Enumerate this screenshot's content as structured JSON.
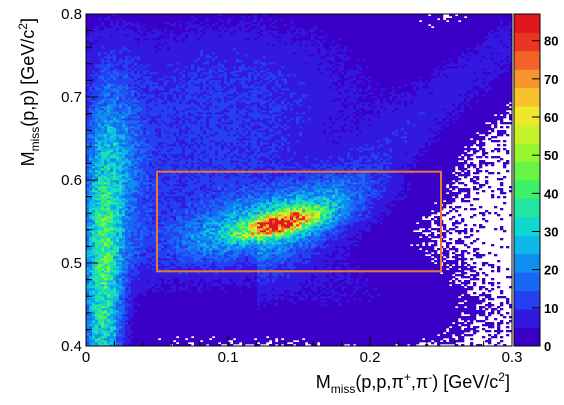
{
  "chart_data": {
    "type": "heatmap",
    "title": "",
    "xlabel_parts": {
      "main": "M",
      "sub": "miss",
      "rest": "(p,p,",
      "pi": "π",
      "sup1": "+",
      "comma": ",",
      "pi2": "π",
      "sup2": "-",
      "tail": ") [GeV/c",
      "sup3": "2",
      "close": "]"
    },
    "ylabel_parts": {
      "main": "M",
      "sub": "miss",
      "rest": "(p,p) [GeV/c",
      "sup": "2",
      "close": "]"
    },
    "xlim": [
      0,
      0.3
    ],
    "ylim": [
      0.4,
      0.8
    ],
    "x_ticks": [
      {
        "value": 0,
        "label": "0"
      },
      {
        "value": 0.1,
        "label": "0.1"
      },
      {
        "value": 0.2,
        "label": "0.2"
      },
      {
        "value": 0.3,
        "label": "0.3"
      }
    ],
    "y_ticks": [
      {
        "value": 0.4,
        "label": "0.4"
      },
      {
        "value": 0.5,
        "label": "0.5"
      },
      {
        "value": 0.6,
        "label": "0.6"
      },
      {
        "value": 0.7,
        "label": "0.7"
      },
      {
        "value": 0.8,
        "label": "0.8"
      }
    ],
    "z_range": [
      0,
      87
    ],
    "z_ticks": [
      {
        "value": 0,
        "label": "0"
      },
      {
        "value": 10,
        "label": "10"
      },
      {
        "value": 20,
        "label": "20"
      },
      {
        "value": 30,
        "label": "30"
      },
      {
        "value": 40,
        "label": "40"
      },
      {
        "value": 50,
        "label": "50"
      },
      {
        "value": 60,
        "label": "60"
      },
      {
        "value": 70,
        "label": "70"
      },
      {
        "value": 80,
        "label": "80"
      }
    ],
    "palette": [
      "#3b00c7",
      "#3318e0",
      "#2440f0",
      "#1a66f5",
      "#0e8ff0",
      "#0db8e8",
      "#11d8cf",
      "#22e6a0",
      "#3cf06a",
      "#66f545",
      "#98f62e",
      "#c6f22a",
      "#eee82a",
      "#f8c22c",
      "#f7952c",
      "#f36227",
      "#ea3522",
      "#e0181e"
    ],
    "grid": false,
    "legend": "color-bar-right",
    "selection_box": {
      "x_range": [
        0.05,
        0.25
      ],
      "y_range": [
        0.49,
        0.61
      ],
      "color": "#e8783a"
    },
    "density_features": [
      {
        "name": "low-mass band",
        "x_center": 0.01,
        "y_range": [
          0.4,
          0.8
        ],
        "peak": 40
      },
      {
        "name": "central peak",
        "x_center": 0.135,
        "y_center": 0.548,
        "peak": 87
      },
      {
        "name": "upper arm",
        "x_range": [
          0.15,
          0.3
        ],
        "y_range": [
          0.55,
          0.8
        ]
      }
    ]
  }
}
